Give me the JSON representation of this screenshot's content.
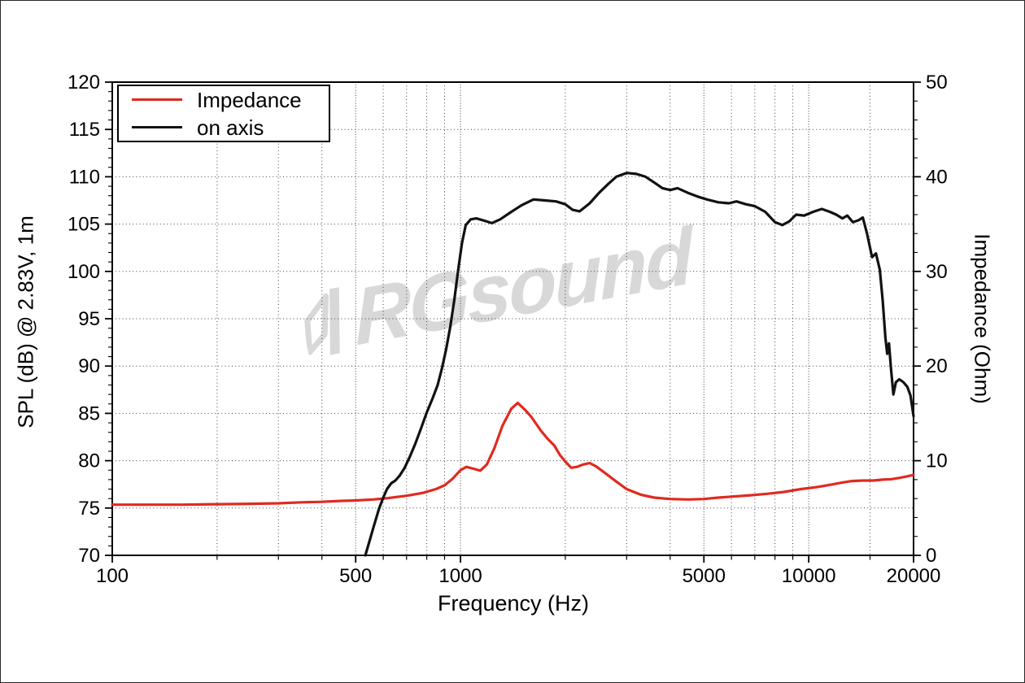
{
  "chart_data": {
    "type": "line",
    "title": "",
    "xlabel": "Frequency (Hz)",
    "ylabel_left": "SPL (dB) @ 2.83V, 1m",
    "ylabel_right": "Impedance (Ohm)",
    "x_scale": "log",
    "xlim": [
      100,
      20000
    ],
    "ylim_left": [
      70,
      120
    ],
    "ylim_right": [
      0,
      50
    ],
    "x_major_ticks": [
      100,
      500,
      1000,
      5000,
      10000,
      20000
    ],
    "x_major_tick_labels": [
      "100",
      "500",
      "1000",
      "5000",
      "10000",
      "20000"
    ],
    "x_minor_ticks": [
      200,
      300,
      400,
      600,
      700,
      800,
      900,
      2000,
      3000,
      4000,
      6000,
      7000,
      8000,
      9000,
      15000
    ],
    "y_left_major_ticks": [
      70,
      75,
      80,
      85,
      90,
      95,
      100,
      105,
      110,
      115,
      120
    ],
    "y_left_minor_step": 1,
    "y_right_major_ticks": [
      0,
      10,
      20,
      30,
      40,
      50
    ],
    "y_right_minor_step": 2,
    "grid": "dotted, horizontal every 5 dB, vertical at log minor ticks",
    "legend": {
      "position": "top-left",
      "items": [
        {
          "label": "Impedance",
          "color_key": "impedance"
        },
        {
          "label": "on axis",
          "color_key": "spl"
        }
      ]
    },
    "watermark_text": "RGsound",
    "colors": {
      "spl": "#121212",
      "impedance": "#e02a20",
      "grid": "#404040",
      "frame": "#000000",
      "watermark": "#d8d8d8"
    },
    "series": [
      {
        "name": "Impedance",
        "axis": "right",
        "unit": "Ohm",
        "color_key": "impedance",
        "points": [
          [
            100,
            5.35
          ],
          [
            130,
            5.35
          ],
          [
            160,
            5.35
          ],
          [
            200,
            5.4
          ],
          [
            250,
            5.45
          ],
          [
            300,
            5.5
          ],
          [
            350,
            5.6
          ],
          [
            400,
            5.65
          ],
          [
            450,
            5.75
          ],
          [
            500,
            5.8
          ],
          [
            560,
            5.9
          ],
          [
            620,
            6.05
          ],
          [
            700,
            6.3
          ],
          [
            780,
            6.6
          ],
          [
            850,
            7.0
          ],
          [
            900,
            7.4
          ],
          [
            950,
            8.1
          ],
          [
            1000,
            9.0
          ],
          [
            1040,
            9.35
          ],
          [
            1090,
            9.15
          ],
          [
            1140,
            8.95
          ],
          [
            1190,
            9.6
          ],
          [
            1250,
            11.3
          ],
          [
            1320,
            13.7
          ],
          [
            1400,
            15.5
          ],
          [
            1460,
            16.1
          ],
          [
            1530,
            15.4
          ],
          [
            1600,
            14.6
          ],
          [
            1700,
            13.2
          ],
          [
            1780,
            12.3
          ],
          [
            1860,
            11.6
          ],
          [
            1930,
            10.6
          ],
          [
            2000,
            9.9
          ],
          [
            2080,
            9.25
          ],
          [
            2160,
            9.35
          ],
          [
            2250,
            9.6
          ],
          [
            2350,
            9.75
          ],
          [
            2450,
            9.4
          ],
          [
            2600,
            8.7
          ],
          [
            2800,
            7.8
          ],
          [
            3000,
            7.0
          ],
          [
            3300,
            6.4
          ],
          [
            3600,
            6.1
          ],
          [
            4000,
            5.95
          ],
          [
            4500,
            5.9
          ],
          [
            5000,
            5.95
          ],
          [
            5500,
            6.1
          ],
          [
            6000,
            6.2
          ],
          [
            6800,
            6.35
          ],
          [
            7600,
            6.5
          ],
          [
            8500,
            6.7
          ],
          [
            9500,
            7.0
          ],
          [
            10500,
            7.2
          ],
          [
            11500,
            7.45
          ],
          [
            12500,
            7.7
          ],
          [
            13300,
            7.85
          ],
          [
            14300,
            7.9
          ],
          [
            15300,
            7.9
          ],
          [
            16300,
            8.0
          ],
          [
            17300,
            8.05
          ],
          [
            18300,
            8.2
          ],
          [
            19200,
            8.35
          ],
          [
            20000,
            8.5
          ]
        ]
      },
      {
        "name": "on axis",
        "axis": "left",
        "unit": "dB",
        "color_key": "spl",
        "points": [
          [
            533,
            70
          ],
          [
            548,
            71.5
          ],
          [
            565,
            73.2
          ],
          [
            583,
            74.9
          ],
          [
            600,
            76.1
          ],
          [
            615,
            77.0
          ],
          [
            632,
            77.6
          ],
          [
            650,
            77.9
          ],
          [
            668,
            78.4
          ],
          [
            690,
            79.2
          ],
          [
            715,
            80.4
          ],
          [
            740,
            81.7
          ],
          [
            770,
            83.4
          ],
          [
            800,
            85.1
          ],
          [
            830,
            86.5
          ],
          [
            860,
            88.0
          ],
          [
            885,
            89.8
          ],
          [
            910,
            91.8
          ],
          [
            935,
            94.2
          ],
          [
            960,
            97.0
          ],
          [
            985,
            100.2
          ],
          [
            1010,
            103.0
          ],
          [
            1035,
            104.9
          ],
          [
            1070,
            105.5
          ],
          [
            1110,
            105.6
          ],
          [
            1160,
            105.4
          ],
          [
            1230,
            105.1
          ],
          [
            1300,
            105.5
          ],
          [
            1400,
            106.3
          ],
          [
            1500,
            107.0
          ],
          [
            1620,
            107.6
          ],
          [
            1750,
            107.5
          ],
          [
            1880,
            107.4
          ],
          [
            2000,
            107.1
          ],
          [
            2100,
            106.5
          ],
          [
            2200,
            106.35
          ],
          [
            2350,
            107.2
          ],
          [
            2500,
            108.3
          ],
          [
            2650,
            109.2
          ],
          [
            2800,
            110.0
          ],
          [
            3000,
            110.4
          ],
          [
            3200,
            110.3
          ],
          [
            3400,
            110.0
          ],
          [
            3600,
            109.4
          ],
          [
            3800,
            108.8
          ],
          [
            4000,
            108.6
          ],
          [
            4200,
            108.8
          ],
          [
            4500,
            108.3
          ],
          [
            4800,
            107.9
          ],
          [
            5100,
            107.6
          ],
          [
            5500,
            107.3
          ],
          [
            5900,
            107.2
          ],
          [
            6200,
            107.4
          ],
          [
            6600,
            107.1
          ],
          [
            7000,
            106.9
          ],
          [
            7500,
            106.3
          ],
          [
            8000,
            105.2
          ],
          [
            8400,
            104.9
          ],
          [
            8800,
            105.3
          ],
          [
            9200,
            106.0
          ],
          [
            9700,
            105.9
          ],
          [
            10300,
            106.3
          ],
          [
            10900,
            106.6
          ],
          [
            11500,
            106.3
          ],
          [
            12000,
            106.0
          ],
          [
            12500,
            105.6
          ],
          [
            12900,
            105.9
          ],
          [
            13400,
            105.2
          ],
          [
            13900,
            105.4
          ],
          [
            14300,
            105.7
          ],
          [
            14700,
            104.0
          ],
          [
            15200,
            101.5
          ],
          [
            15600,
            101.9
          ],
          [
            16000,
            100.2
          ],
          [
            16300,
            97.0
          ],
          [
            16600,
            93.0
          ],
          [
            16800,
            91.3
          ],
          [
            17000,
            92.4
          ],
          [
            17200,
            90.0
          ],
          [
            17500,
            87.0
          ],
          [
            17800,
            88.3
          ],
          [
            18200,
            88.6
          ],
          [
            18700,
            88.3
          ],
          [
            19200,
            87.8
          ],
          [
            19600,
            86.9
          ],
          [
            20000,
            84.7
          ]
        ]
      }
    ]
  }
}
